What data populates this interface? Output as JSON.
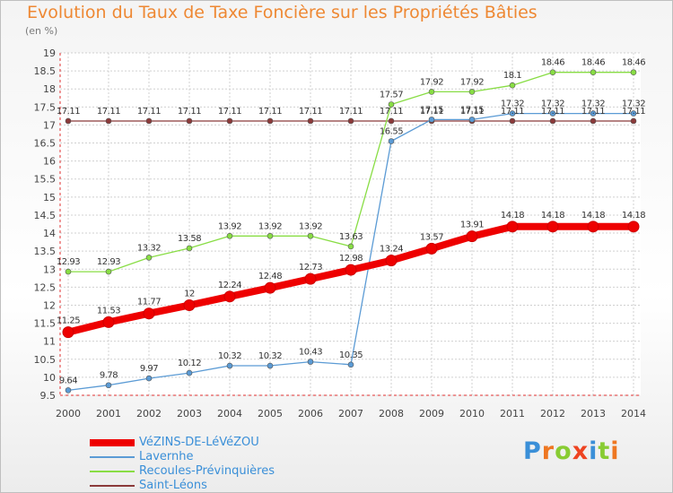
{
  "title": "Evolution du Taux de Taxe Foncière sur les Propriétés Bâties",
  "unit_label": "(en %)",
  "brand": "Proxiti",
  "colors": {
    "title": "#ee8833",
    "legend_text": "#3a8fd8",
    "grid": "#d0d0d0"
  },
  "chart_data": {
    "type": "line",
    "title": "Evolution du Taux de Taxe Foncière sur les Propriétés Bâties",
    "ylabel": "(en %)",
    "xlabel": "",
    "x": [
      2000,
      2001,
      2002,
      2003,
      2004,
      2005,
      2006,
      2007,
      2008,
      2009,
      2010,
      2011,
      2012,
      2013,
      2014
    ],
    "ylim": [
      9.5,
      19
    ],
    "yticks": [
      9.5,
      10,
      10.5,
      11,
      11.5,
      12,
      12.5,
      13,
      13.5,
      14,
      14.5,
      15,
      15.5,
      16,
      16.5,
      17,
      17.5,
      18,
      18.5,
      19
    ],
    "grid": true,
    "legend_position": "bottom",
    "series": [
      {
        "name": "VéZINS-DE-LéVéZOU",
        "color": "#ee0000",
        "values": [
          11.25,
          11.53,
          11.77,
          12,
          12.24,
          12.48,
          12.73,
          12.98,
          13.24,
          13.57,
          13.91,
          14.18,
          14.18,
          14.18,
          14.18
        ],
        "labels": [
          "11.25",
          "11.53",
          "11.77",
          "12",
          "12.24",
          "12.48",
          "12.73",
          "12.98",
          "13.24",
          "13.57",
          "13.91",
          "14.18",
          "14.18",
          "14.18",
          "14.18"
        ]
      },
      {
        "name": "Lavernhe",
        "color": "#5b9bd5",
        "values": [
          9.64,
          9.78,
          9.97,
          10.12,
          10.32,
          10.32,
          10.43,
          10.35,
          16.55,
          17.15,
          17.15,
          17.32,
          17.32,
          17.32,
          17.32
        ],
        "labels": [
          "9.64",
          "9.78",
          "9.97",
          "10.12",
          "10.32",
          "10.32",
          "10.43",
          "10.35",
          "16.55",
          "17.15",
          "17.15",
          "17.32",
          "17.32",
          "17.32",
          "17.32"
        ]
      },
      {
        "name": "Recoules-Prévinquières",
        "color": "#88dd44",
        "values": [
          12.93,
          12.93,
          13.32,
          13.58,
          13.92,
          13.92,
          13.92,
          13.63,
          17.57,
          17.92,
          17.92,
          18.1,
          18.46,
          18.46,
          18.46
        ],
        "labels": [
          "12.93",
          "12.93",
          "13.32",
          "13.58",
          "13.92",
          "13.92",
          "13.92",
          "13.63",
          "17.57",
          "17.92",
          "17.92",
          "18.1",
          "18.46",
          "18.46",
          "18.46"
        ]
      },
      {
        "name": "Saint-Léons",
        "color": "#8b3a3a",
        "values": [
          17.11,
          17.11,
          17.11,
          17.11,
          17.11,
          17.11,
          17.11,
          17.11,
          17.11,
          17.11,
          17.11,
          17.11,
          17.11,
          17.11,
          17.11
        ],
        "labels": [
          "17.11",
          "17.11",
          "17.11",
          "17.11",
          "17.11",
          "17.11",
          "17.11",
          "17.11",
          "17.11",
          "17.11",
          "17.11",
          "17.11",
          "17.11",
          "17.11",
          "17.11"
        ]
      }
    ]
  }
}
